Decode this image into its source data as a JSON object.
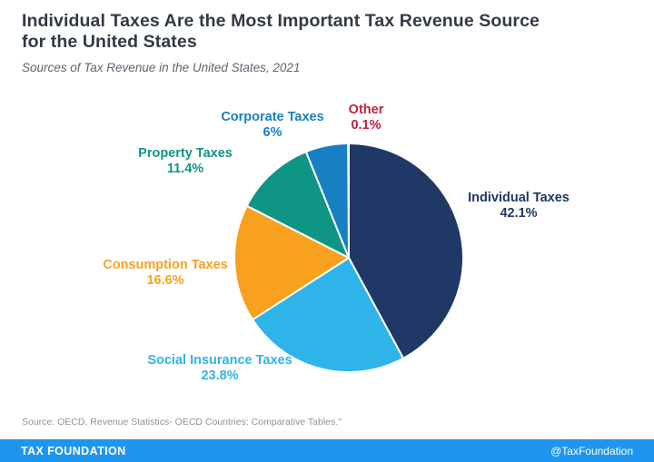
{
  "header": {
    "title_line1": "Individual Taxes Are the Most Important Tax Revenue Source",
    "title_line2": "for the United States",
    "subtitle": "Sources of Tax Revenue in the United States, 2021"
  },
  "chart_data": {
    "type": "pie",
    "title": "Individual Taxes Are the Most Important Tax Revenue Source for the United States",
    "subtitle": "Sources of Tax Revenue in the United States, 2021",
    "unit": "%",
    "start_angle": "12 o'clock",
    "direction": "clockwise",
    "legend_position": "labels around pie",
    "slices": [
      {
        "label": "Individual Taxes",
        "value": 42.1,
        "display": "42.1%",
        "color": "#1F3865"
      },
      {
        "label": "Social Insurance Taxes",
        "value": 23.8,
        "display": "23.8%",
        "color": "#2FB4E9"
      },
      {
        "label": "Consumption Taxes",
        "value": 16.6,
        "display": "16.6%",
        "color": "#F8A11E"
      },
      {
        "label": "Property Taxes",
        "value": 11.4,
        "display": "11.4%",
        "color": "#0F9583"
      },
      {
        "label": "Corporate Taxes",
        "value": 6,
        "display": "6%",
        "color": "#1680C2"
      },
      {
        "label": "Other",
        "value": 0.1,
        "display": "0.1%",
        "color": "#C0203B"
      }
    ]
  },
  "footer": {
    "source": "Source: OECD, Revenue Statistics- OECD Countries: Comparative Tables.\"",
    "brand": "TAX FOUNDATION",
    "handle": "@TaxFoundation",
    "bar_color": "#1E96F0"
  }
}
